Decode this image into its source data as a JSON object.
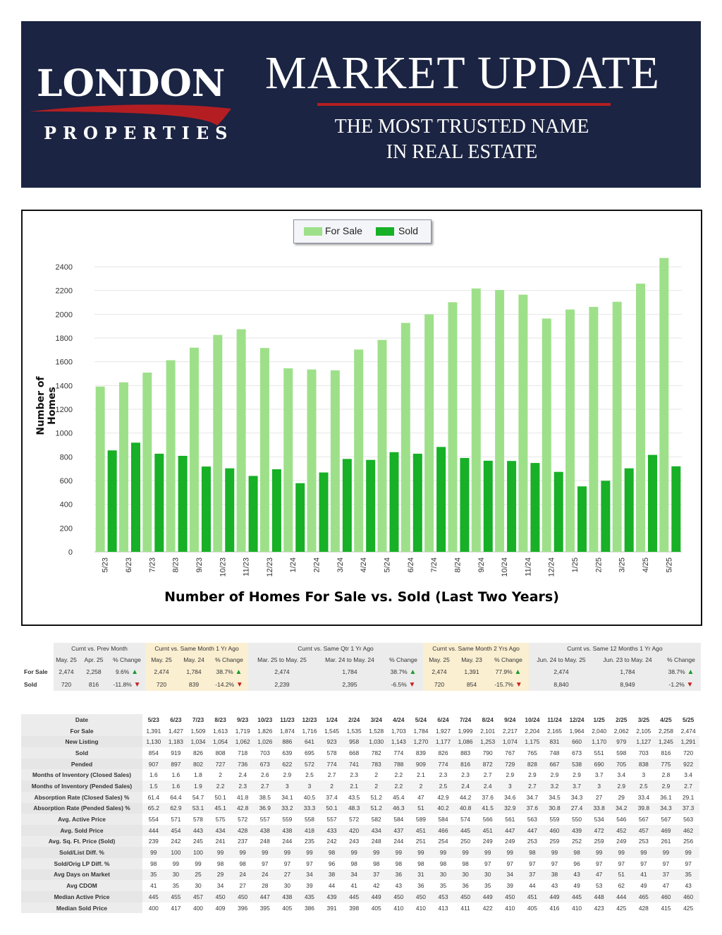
{
  "header": {
    "logo_main": "LONDON",
    "logo_sub": "PROPERTIES",
    "title": "MARKET UPDATE",
    "tagline_line1": "THE MOST TRUSTED NAME",
    "tagline_line2": "IN REAL ESTATE"
  },
  "colors": {
    "banner": "#1b2442",
    "accent_red": "#b41e22",
    "for_sale": "#9ee08a",
    "sold": "#17b026"
  },
  "chart_data": {
    "type": "bar",
    "title": "Number of Homes For Sale vs. Sold (Last Two Years)",
    "xlabel": "",
    "ylabel": "Number of Homes",
    "ylim": [
      0,
      2400
    ],
    "yticks": [
      0,
      200,
      400,
      600,
      800,
      1000,
      1200,
      1400,
      1600,
      1800,
      2000,
      2200,
      2400
    ],
    "legend_position": "top-center",
    "categories": [
      "5/23",
      "6/23",
      "7/23",
      "8/23",
      "9/23",
      "10/23",
      "11/23",
      "12/23",
      "1/24",
      "2/24",
      "3/24",
      "4/24",
      "5/24",
      "6/24",
      "7/24",
      "8/24",
      "9/24",
      "10/24",
      "11/24",
      "12/24",
      "1/25",
      "2/25",
      "3/25",
      "4/25",
      "5/25"
    ],
    "series": [
      {
        "name": "For Sale",
        "values": [
          1391,
          1427,
          1509,
          1613,
          1719,
          1826,
          1874,
          1716,
          1545,
          1535,
          1528,
          1703,
          1784,
          1927,
          1999,
          2101,
          2217,
          2204,
          2165,
          1964,
          2040,
          2062,
          2105,
          2258,
          2474
        ]
      },
      {
        "name": "Sold",
        "values": [
          854,
          919,
          826,
          808,
          718,
          703,
          639,
          695,
          578,
          668,
          782,
          774,
          839,
          826,
          883,
          790,
          767,
          765,
          748,
          673,
          551,
          598,
          703,
          816,
          720
        ]
      }
    ]
  },
  "comparison": {
    "groups": [
      "Curnt vs. Prev Month",
      "Curnt vs. Same Month 1 Yr Ago",
      "Curnt vs. Same Qtr 1 Yr Ago",
      "Curnt vs. Same Month 2 Yrs Ago",
      "Curnt vs. Same 12 Months 1 Yr Ago"
    ],
    "subheaders": [
      "May. 25",
      "Apr. 25",
      "% Change",
      "May. 25",
      "May. 24",
      "% Change",
      "Mar. 25 to May. 25",
      "Mar. 24 to May. 24",
      "% Change",
      "May. 25",
      "May. 23",
      "% Change",
      "Jun. 24 to May. 25",
      "Jun. 23 to May. 24",
      "% Change"
    ],
    "rows": [
      {
        "label": "For Sale",
        "cells": [
          "2,474",
          "2,258",
          "9.6%",
          "2,474",
          "1,784",
          "38.7%",
          "2,474",
          "1,784",
          "38.7%",
          "2,474",
          "1,391",
          "77.9%",
          "2,474",
          "1,784",
          "38.7%"
        ],
        "dirs": [
          "up",
          "up",
          "up",
          "up",
          "up"
        ]
      },
      {
        "label": "Sold",
        "cells": [
          "720",
          "816",
          "-11.8%",
          "720",
          "839",
          "-14.2%",
          "2,239",
          "2,395",
          "-6.5%",
          "720",
          "854",
          "-15.7%",
          "8,840",
          "8,949",
          "-1.2%"
        ],
        "dirs": [
          "down",
          "down",
          "down",
          "down",
          "down"
        ]
      }
    ],
    "arrow_up": "▲",
    "arrow_down": "▼"
  },
  "details": {
    "header_label": "Date",
    "columns": [
      "5/23",
      "6/23",
      "7/23",
      "8/23",
      "9/23",
      "10/23",
      "11/23",
      "12/23",
      "1/24",
      "2/24",
      "3/24",
      "4/24",
      "5/24",
      "6/24",
      "7/24",
      "8/24",
      "9/24",
      "10/24",
      "11/24",
      "12/24",
      "1/25",
      "2/25",
      "3/25",
      "4/25",
      "5/25"
    ],
    "rows": [
      {
        "label": "For Sale",
        "values": [
          "1,391",
          "1,427",
          "1,509",
          "1,613",
          "1,719",
          "1,826",
          "1,874",
          "1,716",
          "1,545",
          "1,535",
          "1,528",
          "1,703",
          "1,784",
          "1,927",
          "1,999",
          "2,101",
          "2,217",
          "2,204",
          "2,165",
          "1,964",
          "2,040",
          "2,062",
          "2,105",
          "2,258",
          "2,474"
        ]
      },
      {
        "label": "New Listing",
        "values": [
          "1,130",
          "1,183",
          "1,034",
          "1,054",
          "1,062",
          "1,026",
          "886",
          "641",
          "923",
          "958",
          "1,030",
          "1,143",
          "1,270",
          "1,177",
          "1,086",
          "1,253",
          "1,074",
          "1,175",
          "831",
          "660",
          "1,170",
          "979",
          "1,127",
          "1,245",
          "1,291"
        ]
      },
      {
        "label": "Sold",
        "values": [
          "854",
          "919",
          "826",
          "808",
          "718",
          "703",
          "639",
          "695",
          "578",
          "668",
          "782",
          "774",
          "839",
          "826",
          "883",
          "790",
          "767",
          "765",
          "748",
          "673",
          "551",
          "598",
          "703",
          "816",
          "720"
        ]
      },
      {
        "label": "Pended",
        "values": [
          "907",
          "897",
          "802",
          "727",
          "736",
          "673",
          "622",
          "572",
          "774",
          "741",
          "783",
          "788",
          "909",
          "774",
          "816",
          "872",
          "729",
          "828",
          "667",
          "538",
          "690",
          "705",
          "838",
          "775",
          "922"
        ]
      },
      {
        "label": "Months of Inventory (Closed Sales)",
        "values": [
          "1.6",
          "1.6",
          "1.8",
          "2",
          "2.4",
          "2.6",
          "2.9",
          "2.5",
          "2.7",
          "2.3",
          "2",
          "2.2",
          "2.1",
          "2.3",
          "2.3",
          "2.7",
          "2.9",
          "2.9",
          "2.9",
          "2.9",
          "3.7",
          "3.4",
          "3",
          "2.8",
          "3.4"
        ]
      },
      {
        "label": "Months of Inventory (Pended Sales)",
        "values": [
          "1.5",
          "1.6",
          "1.9",
          "2.2",
          "2.3",
          "2.7",
          "3",
          "3",
          "2",
          "2.1",
          "2",
          "2.2",
          "2",
          "2.5",
          "2.4",
          "2.4",
          "3",
          "2.7",
          "3.2",
          "3.7",
          "3",
          "2.9",
          "2.5",
          "2.9",
          "2.7"
        ]
      },
      {
        "label": "Absorption Rate (Closed Sales) %",
        "values": [
          "61.4",
          "64.4",
          "54.7",
          "50.1",
          "41.8",
          "38.5",
          "34.1",
          "40.5",
          "37.4",
          "43.5",
          "51.2",
          "45.4",
          "47",
          "42.9",
          "44.2",
          "37.6",
          "34.6",
          "34.7",
          "34.5",
          "34.3",
          "27",
          "29",
          "33.4",
          "36.1",
          "29.1"
        ]
      },
      {
        "label": "Absorption Rate (Pended Sales) %",
        "values": [
          "65.2",
          "62.9",
          "53.1",
          "45.1",
          "42.8",
          "36.9",
          "33.2",
          "33.3",
          "50.1",
          "48.3",
          "51.2",
          "46.3",
          "51",
          "40.2",
          "40.8",
          "41.5",
          "32.9",
          "37.6",
          "30.8",
          "27.4",
          "33.8",
          "34.2",
          "39.8",
          "34.3",
          "37.3"
        ]
      },
      {
        "label": "Avg. Active Price",
        "values": [
          "554",
          "571",
          "578",
          "575",
          "572",
          "557",
          "559",
          "558",
          "557",
          "572",
          "582",
          "584",
          "589",
          "584",
          "574",
          "566",
          "561",
          "563",
          "559",
          "550",
          "534",
          "546",
          "567",
          "567",
          "563"
        ]
      },
      {
        "label": "Avg. Sold Price",
        "values": [
          "444",
          "454",
          "443",
          "434",
          "428",
          "438",
          "438",
          "418",
          "433",
          "420",
          "434",
          "437",
          "451",
          "466",
          "445",
          "451",
          "447",
          "447",
          "460",
          "439",
          "472",
          "452",
          "457",
          "469",
          "462"
        ]
      },
      {
        "label": "Avg. Sq. Ft. Price (Sold)",
        "values": [
          "239",
          "242",
          "245",
          "241",
          "237",
          "248",
          "244",
          "235",
          "242",
          "243",
          "248",
          "244",
          "251",
          "254",
          "250",
          "249",
          "249",
          "253",
          "259",
          "252",
          "259",
          "249",
          "253",
          "261",
          "256"
        ]
      },
      {
        "label": "Sold/List Diff. %",
        "values": [
          "99",
          "100",
          "100",
          "99",
          "99",
          "99",
          "99",
          "99",
          "98",
          "99",
          "99",
          "99",
          "99",
          "99",
          "99",
          "99",
          "99",
          "98",
          "99",
          "98",
          "99",
          "99",
          "99",
          "99",
          "99"
        ]
      },
      {
        "label": "Sold/Orig LP Diff. %",
        "values": [
          "98",
          "99",
          "99",
          "98",
          "98",
          "97",
          "97",
          "97",
          "96",
          "98",
          "98",
          "98",
          "98",
          "98",
          "98",
          "97",
          "97",
          "97",
          "97",
          "96",
          "97",
          "97",
          "97",
          "97",
          "97"
        ]
      },
      {
        "label": "Avg Days on Market",
        "values": [
          "35",
          "30",
          "25",
          "29",
          "24",
          "24",
          "27",
          "34",
          "38",
          "34",
          "37",
          "36",
          "31",
          "30",
          "30",
          "30",
          "34",
          "37",
          "38",
          "43",
          "47",
          "51",
          "41",
          "37",
          "35"
        ]
      },
      {
        "label": "Avg CDOM",
        "values": [
          "41",
          "35",
          "30",
          "34",
          "27",
          "28",
          "30",
          "39",
          "44",
          "41",
          "42",
          "43",
          "36",
          "35",
          "36",
          "35",
          "39",
          "44",
          "43",
          "49",
          "53",
          "62",
          "49",
          "47",
          "43"
        ]
      },
      {
        "label": "Median Active Price",
        "values": [
          "445",
          "455",
          "457",
          "450",
          "450",
          "447",
          "438",
          "435",
          "439",
          "445",
          "449",
          "450",
          "450",
          "453",
          "450",
          "449",
          "450",
          "451",
          "449",
          "445",
          "448",
          "444",
          "465",
          "460",
          "460"
        ]
      },
      {
        "label": "Median Sold Price",
        "values": [
          "400",
          "417",
          "400",
          "409",
          "396",
          "395",
          "405",
          "386",
          "391",
          "398",
          "405",
          "410",
          "410",
          "413",
          "411",
          "422",
          "410",
          "405",
          "416",
          "410",
          "423",
          "425",
          "428",
          "415",
          "425"
        ]
      }
    ]
  }
}
